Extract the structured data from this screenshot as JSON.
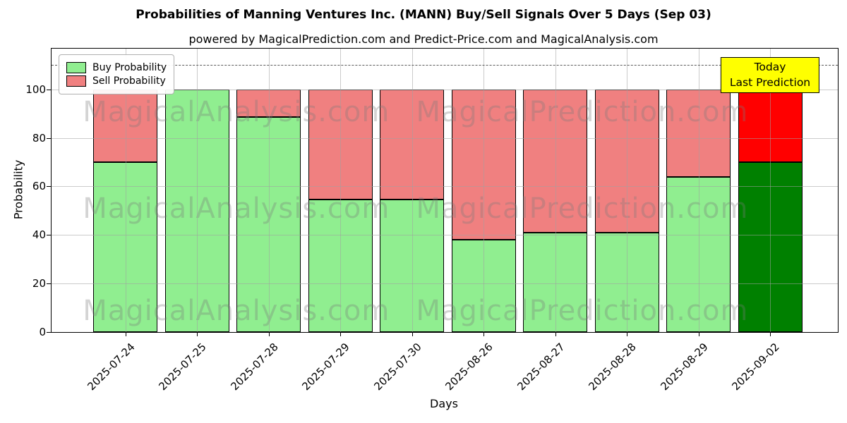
{
  "title": "Probabilities of Manning Ventures Inc. (MANN) Buy/Sell Signals Over 5 Days (Sep 03)",
  "subtitle": "powered by MagicalPrediction.com and Predict-Price.com and MagicalAnalysis.com",
  "legend": {
    "items": [
      {
        "label": "Buy Probability",
        "color": "#90EE90"
      },
      {
        "label": "Sell Probability",
        "color": "#F08080"
      }
    ]
  },
  "annotation": {
    "line1": "Today",
    "line2": "Last Prediction",
    "bg_color": "#FFFF00"
  },
  "watermarks": {
    "left_text": "MagicalAnalysis.com",
    "right_text": "MagicalPrediction.com"
  },
  "chart_data": {
    "type": "bar",
    "stacked": true,
    "title": "Probabilities of Manning Ventures Inc. (MANN) Buy/Sell Signals Over 5 Days (Sep 03)",
    "xlabel": "Days",
    "ylabel": "Probability",
    "categories": [
      "2025-07-24",
      "2025-07-25",
      "2025-07-28",
      "2025-07-29",
      "2025-07-30",
      "2025-08-26",
      "2025-08-27",
      "2025-08-28",
      "2025-08-29",
      "2025-09-02"
    ],
    "series": [
      {
        "name": "Buy Probability",
        "color": "#90EE90",
        "values": [
          70,
          100,
          88.5,
          54.5,
          54.5,
          38,
          41,
          41,
          64,
          70
        ]
      },
      {
        "name": "Sell Probability",
        "color": "#F08080",
        "values": [
          30,
          0,
          11.5,
          45.5,
          45.5,
          62,
          59,
          59,
          36,
          30
        ]
      }
    ],
    "last_bar_colors": {
      "buy": "#008000",
      "sell": "#FF0000"
    },
    "ylim": [
      0,
      116.8
    ],
    "yticks": [
      0,
      20,
      40,
      60,
      80,
      100
    ],
    "dashed_line_y": 110,
    "grid": true,
    "legend_position": "upper left"
  }
}
